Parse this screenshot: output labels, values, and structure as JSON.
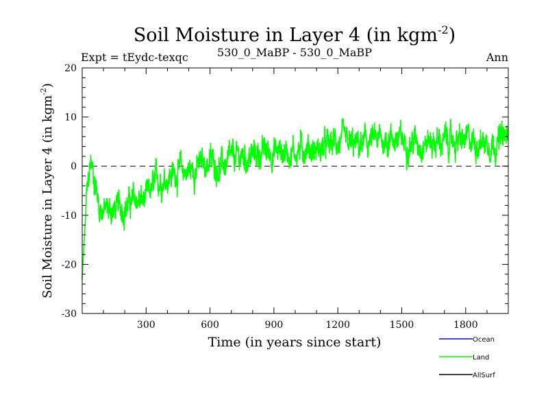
{
  "chart_data": {
    "type": "line",
    "title": "Soil Moisture in Layer 4 (in kgm",
    "title_sup": "-2",
    "title_close": ")",
    "subtitle_left": "Expt = tEydc-texqc",
    "subtitle_center": "530_0_MaBP - 530_0_MaBP",
    "subtitle_right": "Ann",
    "xlabel": "Time (in years since start)",
    "ylabel": "Soil Moisture in Layer 4 (in kgm",
    "ylabel_sup": "-2",
    "ylabel_close": ")",
    "xlim": [
      0,
      2000
    ],
    "ylim": [
      -30,
      20
    ],
    "xticks": [
      300,
      600,
      900,
      1200,
      1500,
      1800
    ],
    "yticks": [
      -30,
      -20,
      -10,
      0,
      10,
      20
    ],
    "zero_line": 0,
    "series": [
      {
        "name": "Land",
        "color": "#00ff00",
        "x": [
          0,
          10,
          20,
          40,
          60,
          80,
          100,
          150,
          200,
          250,
          300,
          350,
          400,
          450,
          500,
          550,
          600,
          650,
          700,
          750,
          800,
          850,
          900,
          950,
          1000,
          1050,
          1100,
          1150,
          1200,
          1250,
          1300,
          1350,
          1400,
          1450,
          1500,
          1550,
          1600,
          1650,
          1700,
          1750,
          1800,
          1850,
          1900,
          1950,
          2000
        ],
        "values": [
          -23,
          -15,
          -7,
          1,
          -3,
          -8,
          -9,
          -9,
          -8,
          -7,
          -7,
          -3,
          -2,
          -1,
          -1,
          0,
          1,
          0,
          1,
          2,
          2,
          3,
          3,
          3,
          3,
          4,
          3,
          4,
          5,
          4,
          4,
          5,
          5,
          6,
          5,
          5,
          5,
          5,
          5,
          5,
          5,
          5,
          5,
          5,
          6
        ]
      }
    ],
    "legend": [
      {
        "name": "Ocean",
        "color": "#0000ff"
      },
      {
        "name": "Land",
        "color": "#00ff00"
      },
      {
        "name": "AllSurf",
        "color": "#000000"
      }
    ]
  }
}
